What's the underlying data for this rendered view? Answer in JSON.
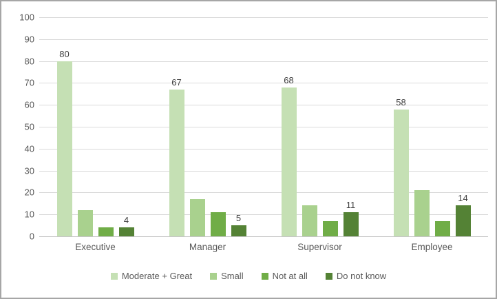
{
  "chart_data": {
    "type": "bar",
    "categories": [
      "Executive",
      "Manager",
      "Supervisor",
      "Employee"
    ],
    "series": [
      {
        "name": "Moderate + Great",
        "color": "#c5e0b4",
        "values": [
          80,
          67,
          68,
          58
        ],
        "labels_visible": true
      },
      {
        "name": "Small",
        "color": "#a9d18e",
        "values": [
          12,
          17,
          14,
          21
        ],
        "labels_visible": false
      },
      {
        "name": "Not at all",
        "color": "#70ad47",
        "values": [
          4,
          11,
          7,
          7
        ],
        "labels_visible": false
      },
      {
        "name": "Do not know",
        "color": "#548235",
        "values": [
          4,
          5,
          11,
          14
        ],
        "labels_visible": true
      }
    ],
    "title": "",
    "xlabel": "",
    "ylabel": "",
    "ylim": [
      0,
      100
    ],
    "ytick_step": 10,
    "grid": true,
    "legend_position": "bottom",
    "colors": {
      "gridline": "#d9d9d9",
      "axis_line": "#c6c6c6",
      "tick_text": "#595959",
      "data_label_text": "#404040",
      "frame_border": "#a6a6a6"
    }
  }
}
